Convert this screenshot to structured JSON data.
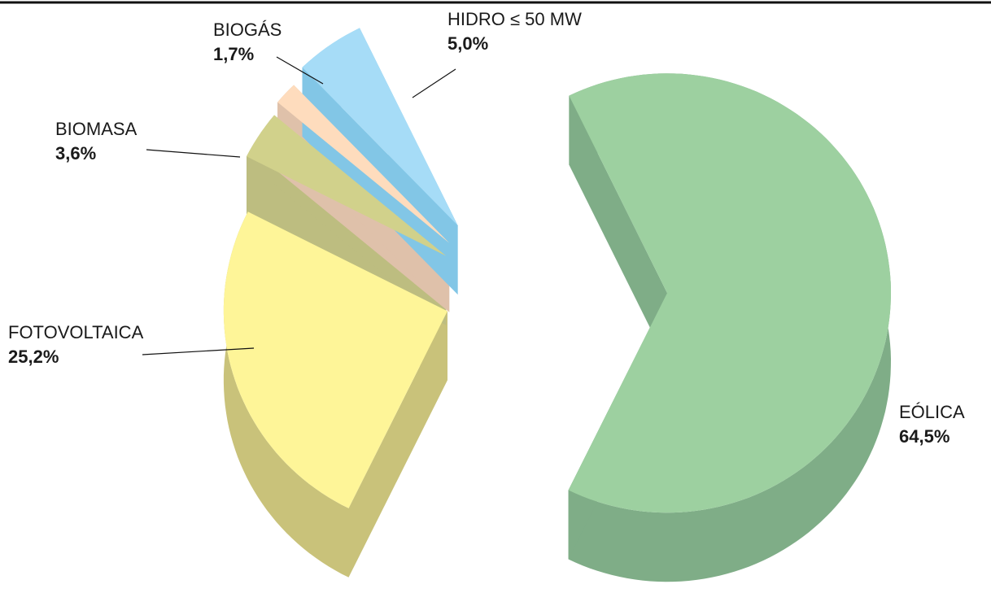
{
  "chart_data": {
    "type": "pie",
    "categories": [
      "EÓLICA",
      "FOTOVOLTAICA",
      "BIOMASA",
      "BIOGÁS",
      "HIDRO ≤ 50 MW"
    ],
    "values": [
      64.5,
      25.2,
      3.6,
      1.7,
      5.0
    ],
    "value_labels": [
      "64,5%",
      "25,2%",
      "3,6%",
      "1,7%",
      "5,0%"
    ],
    "colors": [
      "#9dd0a0",
      "#fef598",
      "#d1d18b",
      "#fedcbd",
      "#a6dcf7"
    ],
    "side_colors": [
      "#7fad87",
      "#c9c27a",
      "#bdbd80",
      "#dfc1aa",
      "#82c6e6"
    ]
  }
}
